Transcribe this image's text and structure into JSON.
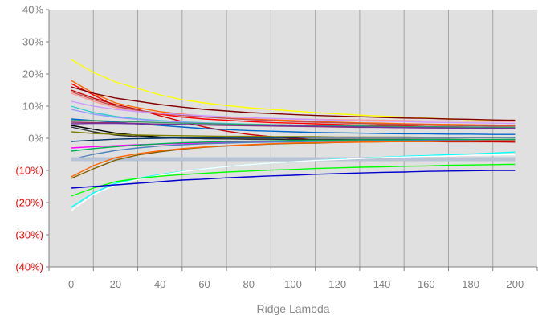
{
  "chart_data": {
    "type": "line",
    "title": "",
    "xlabel": "Ridge Lambda",
    "ylabel": "",
    "x": [
      0,
      10,
      20,
      30,
      40,
      50,
      60,
      70,
      80,
      90,
      100,
      110,
      120,
      130,
      140,
      150,
      160,
      170,
      180,
      190,
      200
    ],
    "xticks": [
      "0",
      "20",
      "40",
      "60",
      "80",
      "100",
      "120",
      "140",
      "160",
      "180",
      "200"
    ],
    "xlim": [
      -10,
      210
    ],
    "ylim": [
      -40,
      40
    ],
    "yticks": [
      {
        "value": 40,
        "label": "40%",
        "negative": false
      },
      {
        "value": 30,
        "label": "30%",
        "negative": false
      },
      {
        "value": 20,
        "label": "20%",
        "negative": false
      },
      {
        "value": 10,
        "label": "10%",
        "negative": false
      },
      {
        "value": 0,
        "label": "0%",
        "negative": false
      },
      {
        "value": -10,
        "label": "(10%)",
        "negative": true
      },
      {
        "value": -20,
        "label": "(20%)",
        "negative": true
      },
      {
        "value": -30,
        "label": "(30%)",
        "negative": true
      },
      {
        "value": -40,
        "label": "(40%)",
        "negative": true
      }
    ],
    "negative_label_color": "#ff0000",
    "positive_label_color": "#7f7f7f",
    "plot_background": "#e0e0e0",
    "grid": "vertical",
    "legend": "none",
    "series": [
      {
        "color": "#ffff00",
        "values": [
          24.5,
          20.5,
          17.5,
          15.5,
          13.5,
          12.0,
          11.0,
          10.2,
          9.5,
          9.0,
          8.5,
          8.0,
          7.6,
          7.2,
          6.9,
          6.6,
          6.3,
          6.0,
          5.8,
          5.6,
          5.4
        ]
      },
      {
        "color": "#ff6600",
        "values": [
          18.0,
          14.0,
          11.0,
          9.5,
          8.3,
          7.5,
          6.9,
          6.4,
          6.0,
          5.7,
          5.5,
          5.2,
          5.0,
          4.8,
          4.7,
          4.5,
          4.4,
          4.3,
          4.2,
          4.1,
          4.0
        ]
      },
      {
        "color": "#ff0000",
        "values": [
          17.0,
          13.5,
          10.0,
          8.5,
          7.5,
          6.6,
          6.0,
          5.6,
          5.2,
          4.9,
          4.7,
          4.5,
          4.3,
          4.1,
          4.0,
          3.9,
          3.7,
          3.6,
          3.5,
          3.4,
          3.3
        ]
      },
      {
        "color": "#800000",
        "values": [
          16.0,
          14.0,
          12.5,
          11.5,
          10.5,
          9.7,
          9.0,
          8.5,
          8.0,
          7.7,
          7.4,
          7.1,
          6.9,
          6.7,
          6.5,
          6.3,
          6.2,
          6.0,
          5.9,
          5.7,
          5.6
        ]
      },
      {
        "color": "#cc0000",
        "values": [
          15.0,
          12.5,
          10.5,
          9.0,
          7.0,
          5.2,
          3.5,
          2.2,
          1.2,
          0.5,
          0.0,
          -0.4,
          -0.6,
          -0.8,
          -0.9,
          -1.0,
          -1.0,
          -1.1,
          -1.1,
          -1.1,
          -1.2
        ]
      },
      {
        "color": "#ff9999",
        "values": [
          14.0,
          11.5,
          9.5,
          8.5,
          7.7,
          7.2,
          6.8,
          6.5,
          6.3,
          6.1,
          6.0,
          5.9,
          5.8,
          5.7,
          5.6,
          5.5,
          5.4,
          5.4,
          5.3,
          5.3,
          5.2
        ]
      },
      {
        "color": "#c0504d",
        "values": [
          14.5,
          12.0,
          10.0,
          8.7,
          7.8,
          7.1,
          6.6,
          6.2,
          5.8,
          5.5,
          5.2,
          5.0,
          4.8,
          4.6,
          4.4,
          4.3,
          4.2,
          4.0,
          3.9,
          3.8,
          3.7
        ]
      },
      {
        "color": "#cc99ff",
        "values": [
          11.5,
          10.0,
          9.0,
          8.3,
          7.8,
          7.4,
          7.0,
          6.7,
          6.4,
          6.2,
          6.0,
          5.8,
          5.6,
          5.4,
          5.3,
          5.2,
          5.0,
          4.9,
          4.8,
          4.7,
          4.6
        ]
      },
      {
        "color": "#33cccc",
        "values": [
          10.0,
          8.0,
          6.8,
          6.0,
          5.5,
          5.1,
          4.8,
          4.6,
          4.4,
          4.2,
          4.1,
          4.0,
          3.9,
          3.8,
          3.7,
          3.6,
          3.6,
          3.5,
          3.5,
          3.4,
          3.4
        ]
      },
      {
        "color": "#9999ff",
        "values": [
          9.0,
          7.5,
          6.5,
          5.9,
          5.4,
          5.0,
          4.7,
          4.4,
          4.2,
          4.0,
          3.9,
          3.8,
          3.7,
          3.6,
          3.5,
          3.4,
          3.4,
          3.3,
          3.2,
          3.2,
          3.1
        ]
      },
      {
        "color": "#0066cc",
        "values": [
          6.0,
          5.5,
          5.0,
          4.5,
          4.0,
          3.5,
          3.0,
          2.7,
          2.4,
          2.2,
          2.0,
          1.8,
          1.7,
          1.6,
          1.5,
          1.4,
          1.4,
          1.3,
          1.3,
          1.2,
          1.2
        ]
      },
      {
        "color": "#339966",
        "values": [
          5.5,
          5.5,
          5.3,
          5.1,
          4.9,
          4.7,
          4.6,
          4.4,
          4.3,
          4.2,
          4.1,
          4.0,
          3.9,
          3.8,
          3.7,
          3.6,
          3.6,
          3.5,
          3.4,
          3.4,
          3.3
        ]
      },
      {
        "color": "#993366",
        "values": [
          5.0,
          4.9,
          4.8,
          4.6,
          4.4,
          4.2,
          4.1,
          4.0,
          3.9,
          3.8,
          3.7,
          3.6,
          3.5,
          3.4,
          3.4,
          3.3,
          3.2,
          3.2,
          3.1,
          3.1,
          3.0
        ]
      },
      {
        "color": "#7030a0",
        "values": [
          4.5,
          4.6,
          4.6,
          4.5,
          4.4,
          4.3,
          4.2,
          4.1,
          4.0,
          3.9,
          3.8,
          3.7,
          3.6,
          3.5,
          3.4,
          3.3,
          3.3,
          3.2,
          3.1,
          3.1,
          3.0
        ]
      },
      {
        "color": "#000000",
        "values": [
          4.0,
          2.8,
          1.6,
          0.9,
          0.4,
          0.1,
          -0.1,
          -0.2,
          -0.3,
          -0.3,
          -0.4,
          -0.4,
          -0.4,
          -0.5,
          -0.5,
          -0.5,
          -0.5,
          -0.5,
          -0.5,
          -0.6,
          -0.6
        ]
      },
      {
        "color": "#333333",
        "values": [
          3.5,
          2.0,
          1.0,
          0.5,
          0.2,
          0.0,
          -0.1,
          -0.2,
          -0.2,
          -0.2,
          -0.3,
          -0.3,
          -0.3,
          -0.3,
          -0.3,
          -0.3,
          -0.3,
          -0.3,
          -0.4,
          -0.4,
          -0.4
        ]
      },
      {
        "color": "#808000",
        "values": [
          2.0,
          1.5,
          1.2,
          1.0,
          0.9,
          0.8,
          0.7,
          0.6,
          0.6,
          0.5,
          0.5,
          0.5,
          0.4,
          0.4,
          0.4,
          0.4,
          0.3,
          0.3,
          0.3,
          0.3,
          0.3
        ]
      },
      {
        "color": "#003366",
        "values": [
          -1.0,
          -0.6,
          -0.3,
          -0.1,
          0.0,
          0.1,
          0.1,
          0.2,
          0.2,
          0.2,
          0.2,
          0.3,
          0.3,
          0.3,
          0.3,
          0.3,
          0.3,
          0.3,
          0.3,
          0.3,
          0.3
        ]
      },
      {
        "color": "#ff00ff",
        "values": [
          -3.0,
          -2.6,
          -2.3,
          -2.0,
          -1.8,
          -1.6,
          -1.5,
          -1.3,
          -1.2,
          -1.1,
          -1.0,
          -0.9,
          -0.9,
          -0.8,
          -0.8,
          -0.7,
          -0.7,
          -0.7,
          -0.6,
          -0.6,
          -0.6
        ]
      },
      {
        "color": "#00b050",
        "values": [
          -4.0,
          -3.2,
          -2.6,
          -2.1,
          -1.7,
          -1.4,
          -1.2,
          -1.0,
          -0.9,
          -0.8,
          -0.7,
          -0.6,
          -0.6,
          -0.5,
          -0.5,
          -0.5,
          -0.4,
          -0.4,
          -0.4,
          -0.4,
          -0.3
        ]
      },
      {
        "color": "#4f81bd",
        "values": [
          -6.5,
          -5.0,
          -3.8,
          -3.0,
          -2.4,
          -2.0,
          -1.7,
          -1.5,
          -1.3,
          -1.2,
          -1.1,
          -1.0,
          -0.9,
          -0.9,
          -0.8,
          -0.8,
          -0.7,
          -0.7,
          -0.7,
          -0.7,
          -0.6
        ]
      },
      {
        "color": "#b8c4d6",
        "values": [
          -6.5,
          -6.5,
          -6.5,
          -6.5,
          -6.5,
          -6.5,
          -6.5,
          -6.5,
          -6.5,
          -6.5,
          -6.5,
          -6.5,
          -6.5,
          -6.5,
          -6.5,
          -6.5,
          -6.5,
          -6.5,
          -6.5,
          -6.5,
          -6.5
        ]
      },
      {
        "color": "#806000",
        "values": [
          -12.5,
          -9.5,
          -6.8,
          -5.2,
          -4.2,
          -3.4,
          -2.8,
          -2.4,
          -2.1,
          -1.8,
          -1.6,
          -1.5,
          -1.3,
          -1.2,
          -1.1,
          -1.0,
          -1.0,
          -0.9,
          -0.9,
          -0.8,
          -0.8
        ]
      },
      {
        "color": "#ff6600",
        "values": [
          -12.0,
          -8.5,
          -6.0,
          -4.8,
          -3.9,
          -3.2,
          -2.7,
          -2.3,
          -2.0,
          -1.7,
          -1.5,
          -1.4,
          -1.3,
          -1.2,
          -1.1,
          -1.0,
          -1.0,
          -0.9,
          -0.9,
          -0.8,
          -0.8
        ]
      },
      {
        "color": "#00ffff",
        "values": [
          -21.5,
          -17.0,
          -14.0,
          -12.5,
          -11.3,
          -10.3,
          -9.5,
          -8.8,
          -8.2,
          -7.7,
          -7.3,
          -6.9,
          -6.5,
          -6.2,
          -5.9,
          -5.6,
          -5.4,
          -5.1,
          -4.9,
          -4.6,
          -4.3
        ]
      },
      {
        "color": "#ffffff",
        "values": [
          -22.5,
          -17.5,
          -14.5,
          -12.8,
          -11.5,
          -10.4,
          -9.5,
          -8.8,
          -8.2,
          -7.7,
          -7.3,
          -6.9,
          -6.6,
          -6.3,
          -6.0,
          -5.8,
          -5.6,
          -5.5,
          -5.3,
          -5.2,
          -5.1
        ]
      },
      {
        "color": "#00ff00",
        "values": [
          -18.0,
          -15.5,
          -13.5,
          -12.5,
          -11.8,
          -11.3,
          -10.9,
          -10.5,
          -10.2,
          -9.9,
          -9.7,
          -9.4,
          -9.2,
          -9.0,
          -8.9,
          -8.7,
          -8.6,
          -8.4,
          -8.3,
          -8.2,
          -8.1
        ]
      },
      {
        "color": "#0000cc",
        "values": [
          -15.5,
          -15.0,
          -14.5,
          -14.0,
          -13.5,
          -13.0,
          -12.7,
          -12.3,
          -12.0,
          -11.7,
          -11.5,
          -11.2,
          -11.0,
          -10.8,
          -10.6,
          -10.5,
          -10.3,
          -10.2,
          -10.1,
          -10.0,
          -10.0
        ]
      }
    ]
  }
}
